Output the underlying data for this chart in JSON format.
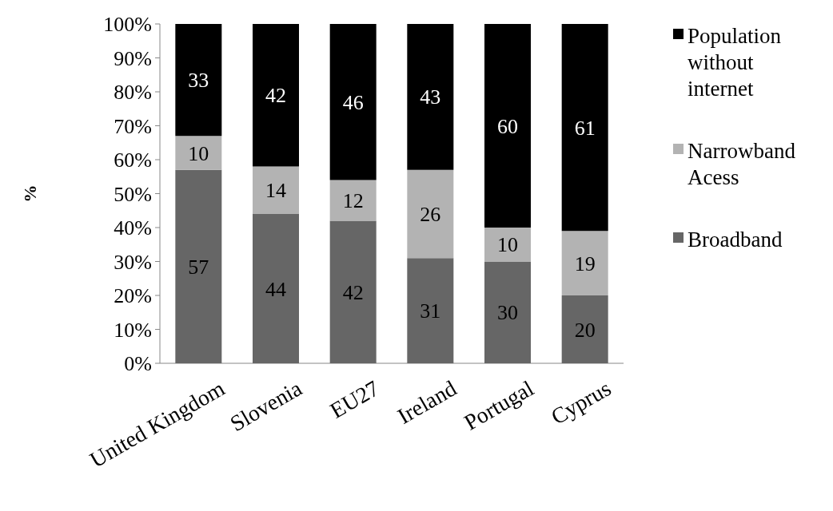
{
  "chart_data": {
    "type": "bar",
    "stacked": true,
    "ylabel": "%",
    "categories": [
      "United Kingdom",
      "Slovenia",
      "EU27",
      "Ireland",
      "Portugal",
      "Cyprus"
    ],
    "series": [
      {
        "name": "Broadband",
        "color": "#666666",
        "values": [
          57,
          44,
          42,
          31,
          30,
          20
        ]
      },
      {
        "name": "Narrowband Acess",
        "color": "#b3b3b3",
        "values": [
          10,
          14,
          12,
          26,
          10,
          19
        ]
      },
      {
        "name": "Population without internet",
        "color": "#000000",
        "values": [
          33,
          42,
          46,
          43,
          60,
          61
        ]
      }
    ],
    "ylim": [
      0,
      100
    ],
    "yticks": [
      {
        "value": 0,
        "label": "0%"
      },
      {
        "value": 10,
        "label": "10%"
      },
      {
        "value": 20,
        "label": "20%"
      },
      {
        "value": 30,
        "label": "30%"
      },
      {
        "value": 40,
        "label": "40%"
      },
      {
        "value": 50,
        "label": "50%"
      },
      {
        "value": 60,
        "label": "60%"
      },
      {
        "value": 70,
        "label": "70%"
      },
      {
        "value": 80,
        "label": "80%"
      },
      {
        "value": 90,
        "label": "90%"
      },
      {
        "value": 100,
        "label": "100%"
      }
    ],
    "data_labels": true,
    "legend": "right",
    "grid": false
  }
}
